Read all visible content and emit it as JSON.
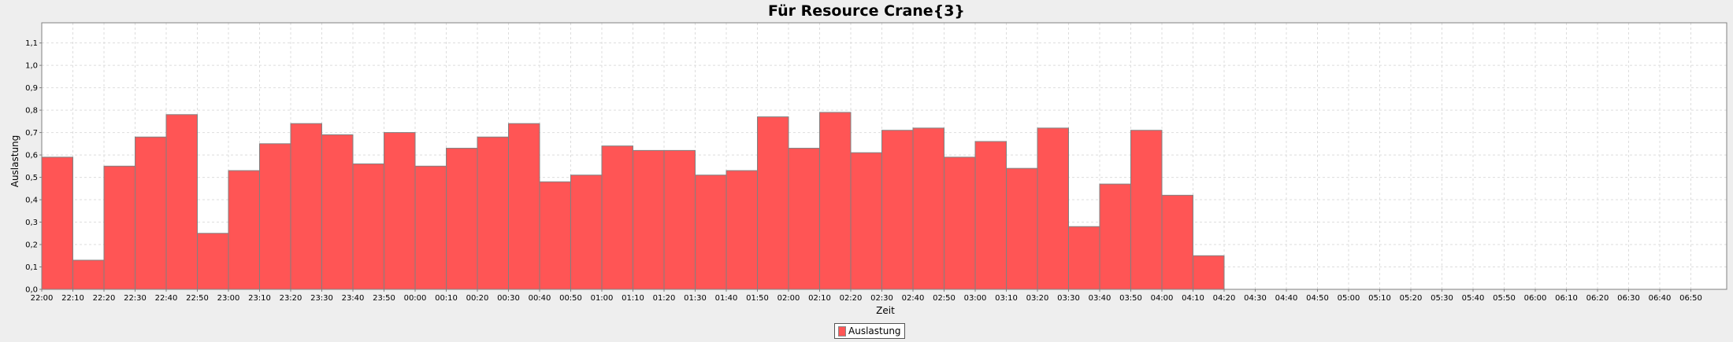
{
  "chart_data": {
    "type": "bar",
    "title": "Für Resource Crane{3}",
    "xlabel": "Zeit",
    "ylabel": "Auslastung",
    "ylim": [
      0,
      1.19
    ],
    "yticks": [
      "0,0",
      "0,1",
      "0,2",
      "0,3",
      "0,4",
      "0,5",
      "0,6",
      "0,7",
      "0,8",
      "0,9",
      "1,0",
      "1,1"
    ],
    "grid": true,
    "legend_position": "bottom",
    "colors": {
      "bar": "#ff5555",
      "bar_edge": "#808080",
      "grid": "#dddddd",
      "plot_bg": "#ffffff"
    },
    "x_ticks": [
      "22:00",
      "22:10",
      "22:20",
      "22:30",
      "22:40",
      "22:50",
      "23:00",
      "23:10",
      "23:20",
      "23:30",
      "23:40",
      "23:50",
      "00:00",
      "00:10",
      "00:20",
      "00:30",
      "00:40",
      "00:50",
      "01:00",
      "01:10",
      "01:20",
      "01:30",
      "01:40",
      "01:50",
      "02:00",
      "02:10",
      "02:20",
      "02:30",
      "02:40",
      "02:50",
      "03:00",
      "03:10",
      "03:20",
      "03:30",
      "03:40",
      "03:50",
      "04:00",
      "04:10",
      "04:20",
      "04:30",
      "04:40",
      "04:50",
      "05:00",
      "05:10",
      "05:20",
      "05:30",
      "05:40",
      "05:50",
      "06:00",
      "06:10",
      "06:20",
      "06:30",
      "06:40",
      "06:50"
    ],
    "series": [
      {
        "name": "Auslastung",
        "categories": [
          "22:00",
          "22:10",
          "22:20",
          "22:30",
          "22:40",
          "22:50",
          "23:00",
          "23:10",
          "23:20",
          "23:30",
          "23:40",
          "23:50",
          "00:00",
          "00:10",
          "00:20",
          "00:30",
          "00:40",
          "00:50",
          "01:00",
          "01:10",
          "01:20",
          "01:30",
          "01:40",
          "01:50",
          "02:00",
          "02:10",
          "02:20",
          "02:30",
          "02:40",
          "02:50",
          "03:00",
          "03:10",
          "03:20",
          "03:30",
          "03:40",
          "03:50",
          "04:00",
          "04:10"
        ],
        "values": [
          0.59,
          0.13,
          0.55,
          0.68,
          0.78,
          0.25,
          0.53,
          0.65,
          0.74,
          0.69,
          0.56,
          0.7,
          0.55,
          0.63,
          0.68,
          0.74,
          0.48,
          0.51,
          0.64,
          0.62,
          0.62,
          0.51,
          0.53,
          0.77,
          0.63,
          0.79,
          0.61,
          0.71,
          0.72,
          0.59,
          0.66,
          0.54,
          0.72,
          0.28,
          0.47,
          0.71,
          0.42,
          0.15
        ]
      }
    ]
  }
}
